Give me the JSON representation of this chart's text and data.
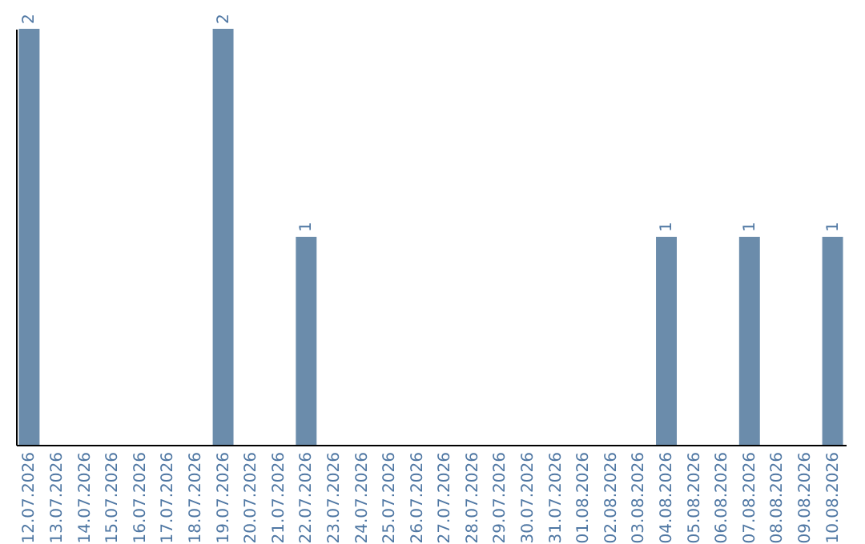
{
  "chart_data": {
    "type": "bar",
    "categories": [
      "12.07.2026",
      "13.07.2026",
      "14.07.2026",
      "15.07.2026",
      "16.07.2026",
      "17.07.2026",
      "18.07.2026",
      "19.07.2026",
      "20.07.2026",
      "21.07.2026",
      "22.07.2026",
      "23.07.2026",
      "24.07.2026",
      "25.07.2026",
      "26.07.2026",
      "27.07.2026",
      "28.07.2026",
      "29.07.2026",
      "30.07.2026",
      "31.07.2026",
      "01.08.2026",
      "02.08.2026",
      "03.08.2026",
      "04.08.2026",
      "05.08.2026",
      "06.08.2026",
      "07.08.2026",
      "08.08.2026",
      "09.08.2026",
      "10.08.2026"
    ],
    "values": [
      2,
      0,
      0,
      0,
      0,
      0,
      0,
      2,
      0,
      0,
      1,
      0,
      0,
      0,
      0,
      0,
      0,
      0,
      0,
      0,
      0,
      0,
      0,
      1,
      0,
      0,
      1,
      0,
      0,
      1
    ],
    "value_labels": [
      "2",
      null,
      null,
      null,
      null,
      null,
      null,
      "2",
      null,
      null,
      "1",
      null,
      null,
      null,
      null,
      null,
      null,
      null,
      null,
      null,
      null,
      null,
      null,
      "1",
      null,
      null,
      "1",
      null,
      null,
      "1"
    ],
    "color": "#6b8cab",
    "tick_labels": "x"
  }
}
